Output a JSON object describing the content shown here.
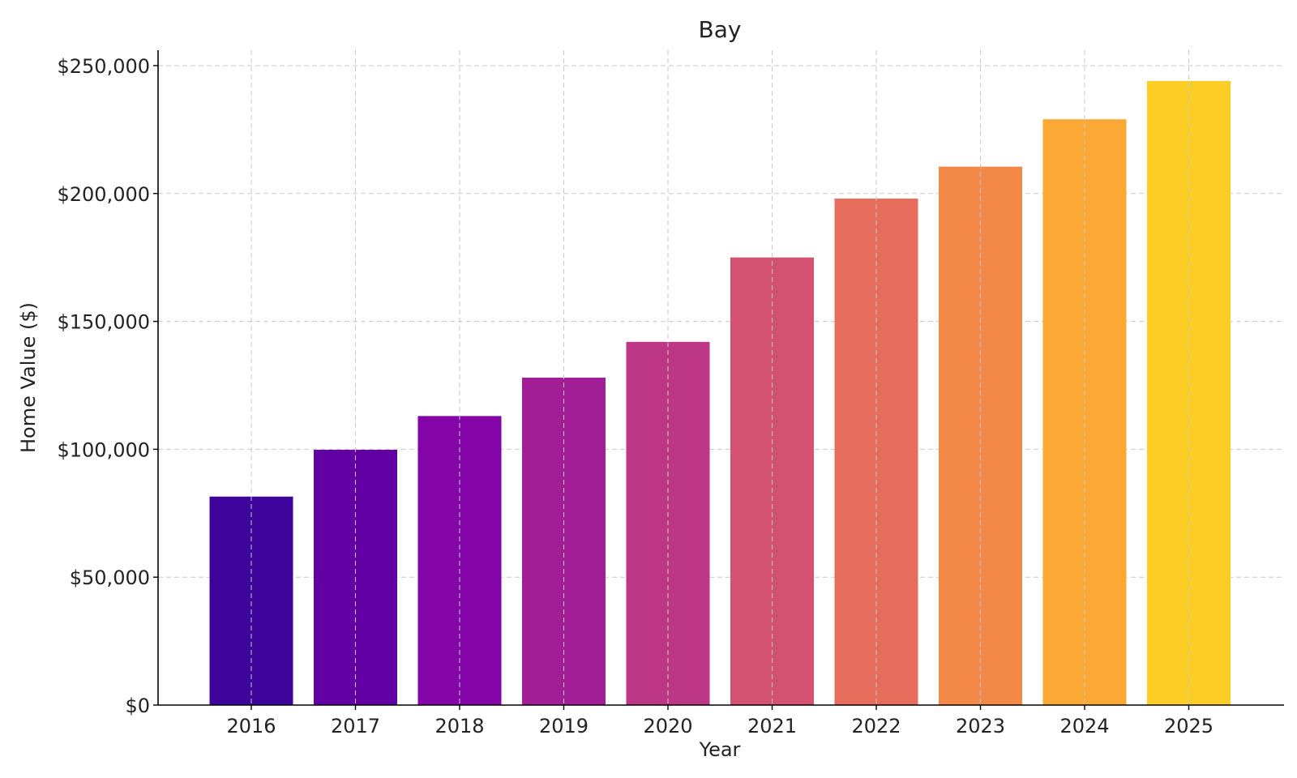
{
  "chart_data": {
    "type": "bar",
    "title": "Bay",
    "xlabel": "Year",
    "ylabel": "Home Value ($)",
    "categories": [
      "2016",
      "2017",
      "2018",
      "2019",
      "2020",
      "2021",
      "2022",
      "2023",
      "2024",
      "2025"
    ],
    "values": [
      81500,
      99800,
      113000,
      128000,
      142000,
      175000,
      198000,
      210500,
      229000,
      244000
    ],
    "colors": [
      "#3e049c",
      "#6200a4",
      "#8305a7",
      "#a11e96",
      "#bd3786",
      "#d35171",
      "#e66c5c",
      "#f48849",
      "#fba835",
      "#fccd25"
    ],
    "ylim": [
      0,
      256000
    ],
    "yticks": [
      0,
      50000,
      100000,
      150000,
      200000,
      250000
    ],
    "ytick_labels": [
      "$0",
      "$50,000",
      "$100,000",
      "$150,000",
      "$200,000",
      "$250,000"
    ],
    "grid": true,
    "legend": "none"
  }
}
